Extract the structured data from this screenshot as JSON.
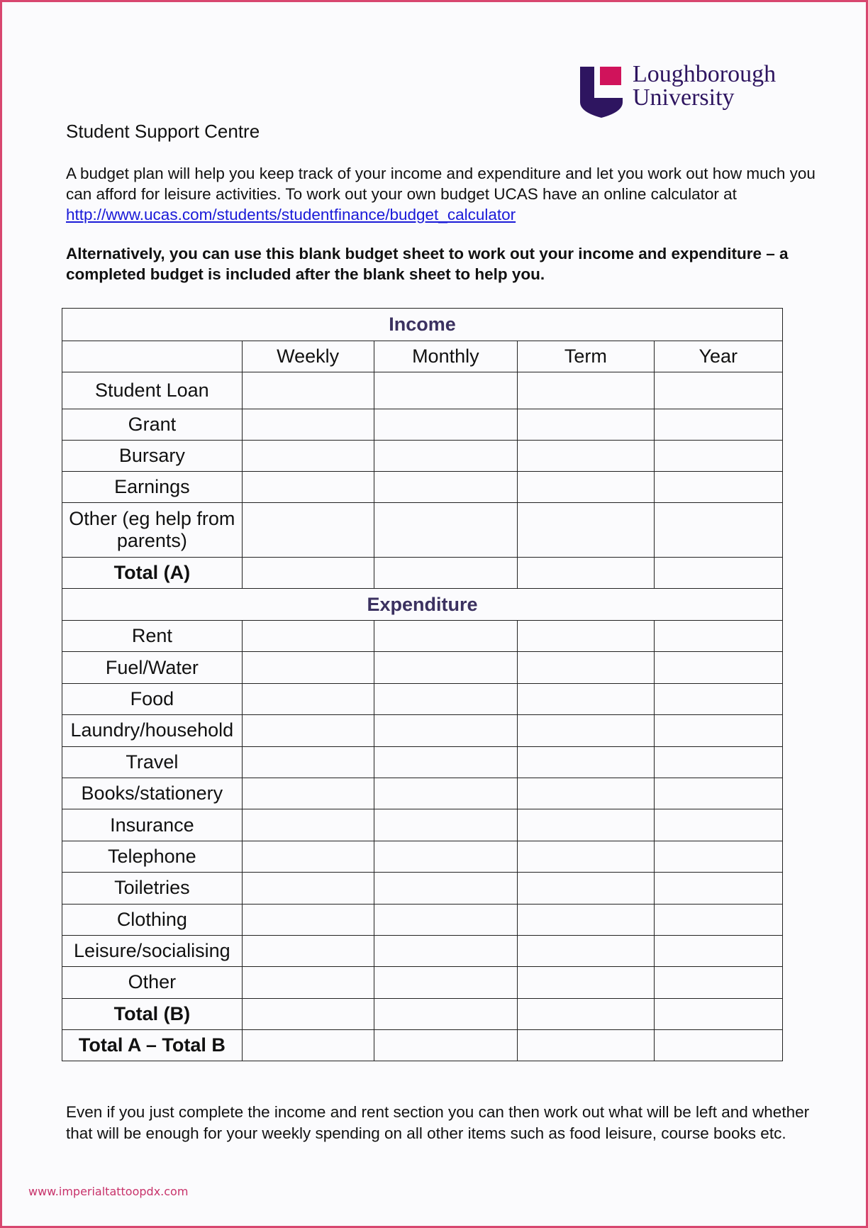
{
  "logo": {
    "line1": "Loughborough",
    "line2": "University",
    "colors": {
      "shield": "#2e1560",
      "square": "#d0135b"
    }
  },
  "title": "Student Support Centre",
  "intro": {
    "text": "A budget plan will help you keep track of your income and expenditure and let you work out how much you can afford for leisure activities. To work out your own budget UCAS have an online calculator at ",
    "link": "http://www.ucas.com/students/studentfinance/budget_calculator"
  },
  "alternative": "Alternatively, you can use this blank budget sheet to work out your income and expenditure – a completed budget is included after the blank sheet to help you.",
  "table": {
    "income_heading": "Income",
    "columns": [
      "Weekly",
      "Monthly",
      "Term",
      "Year"
    ],
    "income_rows": [
      "Student Loan",
      "Grant",
      "Bursary",
      "Earnings",
      "Other (eg help from parents)",
      "Total (A)"
    ],
    "expenditure_heading": "Expenditure",
    "expenditure_rows": [
      "Rent",
      "Fuel/Water",
      "Food",
      "Laundry/household",
      "Travel",
      "Books/stationery",
      "Insurance",
      "Telephone",
      "Toiletries",
      "Clothing",
      "Leisure/socialising",
      "Other",
      "Total (B)",
      "Total A – Total B"
    ]
  },
  "closing": "Even if you just complete the income and rent section you can then work out what will be left and whether that will be enough for your weekly spending on all other items such as food leisure, course books etc.",
  "watermark": "www.imperialtattoopdx.com"
}
